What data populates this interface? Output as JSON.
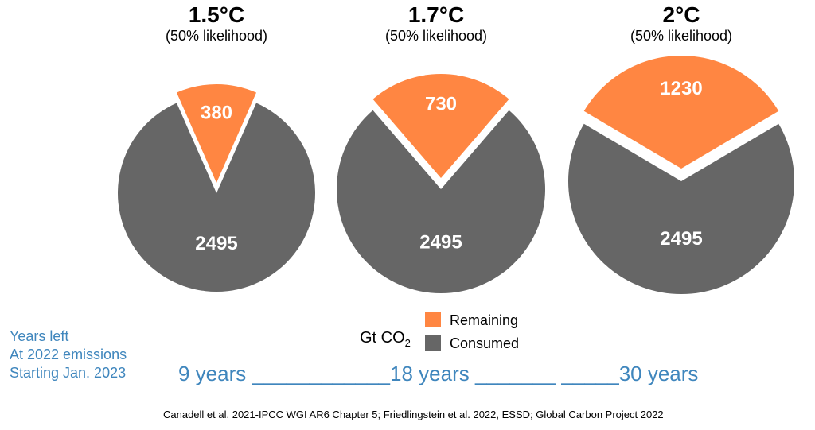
{
  "titles": [
    {
      "temp": "1.5°C",
      "likelihood": "(50% likelihood)"
    },
    {
      "temp": "1.7°C",
      "likelihood": "(50% likelihood)"
    },
    {
      "temp": "2°C",
      "likelihood": "(50% likelihood)"
    }
  ],
  "legend": {
    "unit_main": "Gt CO",
    "unit_sub": "2",
    "remaining": "Remaining",
    "consumed": "Consumed"
  },
  "colors": {
    "remaining": "#ff8642",
    "consumed": "#666666",
    "years_text": "#3f86bd"
  },
  "years": {
    "label_lines": [
      "Years left",
      "At 2022 emissions",
      "Starting Jan. 2023"
    ],
    "row": "9 years ____________18 years _______ _____30 years"
  },
  "source": "Canadell et al. 2021-IPCC WGI AR6 Chapter 5; Friedlingstein et al. 2022, ESSD; Global Carbon Project 2022",
  "chart_data": [
    {
      "type": "pie",
      "title": "1.5°C (50% likelihood)",
      "unit": "Gt CO2",
      "categories": [
        "Remaining",
        "Consumed"
      ],
      "values": [
        380,
        2495
      ],
      "years_left": 9
    },
    {
      "type": "pie",
      "title": "1.7°C (50% likelihood)",
      "unit": "Gt CO2",
      "categories": [
        "Remaining",
        "Consumed"
      ],
      "values": [
        730,
        2495
      ],
      "years_left": 18
    },
    {
      "type": "pie",
      "title": "2°C (50% likelihood)",
      "unit": "Gt CO2",
      "categories": [
        "Remaining",
        "Consumed"
      ],
      "values": [
        1230,
        2495
      ],
      "years_left": 30
    }
  ]
}
